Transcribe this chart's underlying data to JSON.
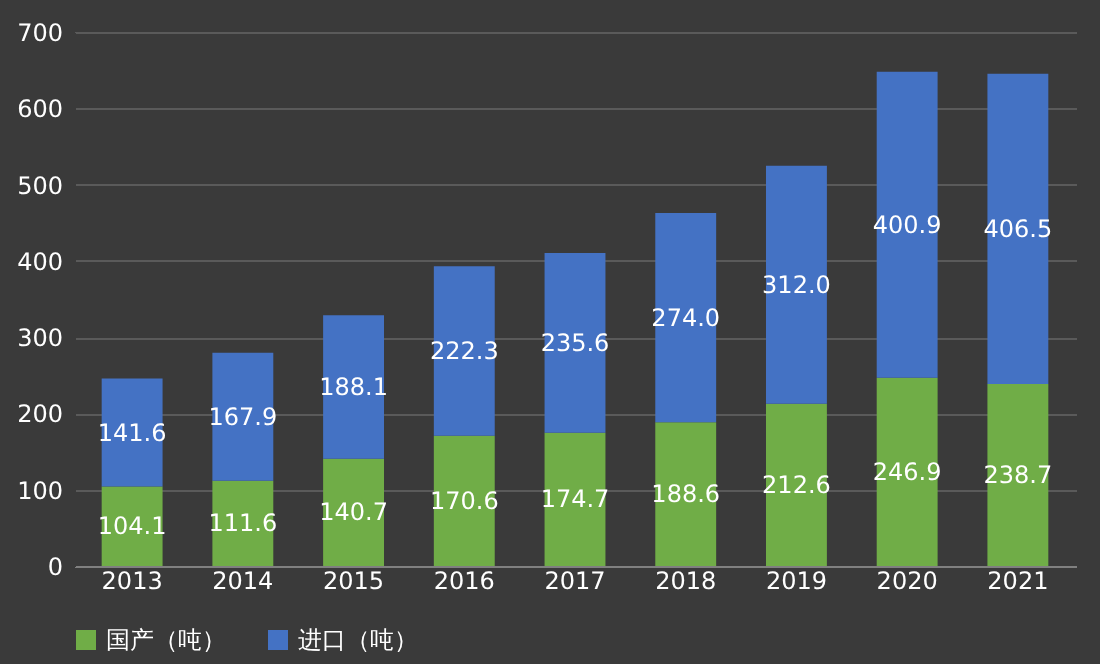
{
  "chart_data": {
    "type": "bar",
    "stacked": true,
    "categories": [
      "2013",
      "2014",
      "2015",
      "2016",
      "2017",
      "2018",
      "2019",
      "2020",
      "2021"
    ],
    "series": [
      {
        "name": "国产（吨）",
        "color": "#70ad47",
        "values": [
          104.1,
          111.6,
          140.7,
          170.6,
          174.7,
          188.6,
          212.6,
          246.9,
          238.7
        ],
        "value_labels": [
          "104.1",
          "111.6",
          "140.7",
          "170.6",
          "174.7",
          "188.6",
          "212.6",
          "246.9",
          "238.7"
        ]
      },
      {
        "name": "进口（吨）",
        "color": "#4472c4",
        "values": [
          141.6,
          167.9,
          188.1,
          222.3,
          235.6,
          274,
          312,
          400.9,
          406.5
        ],
        "value_labels": [
          "141.6",
          "167.9",
          "188.1",
          "222.3",
          "235.6",
          "274.0",
          "312.0",
          "400.9",
          "406.5"
        ]
      }
    ],
    "ylim": [
      0,
      700
    ],
    "yticks": [
      0,
      100,
      200,
      300,
      400,
      500,
      600,
      700
    ],
    "grid": "y",
    "legend": "bottom"
  }
}
